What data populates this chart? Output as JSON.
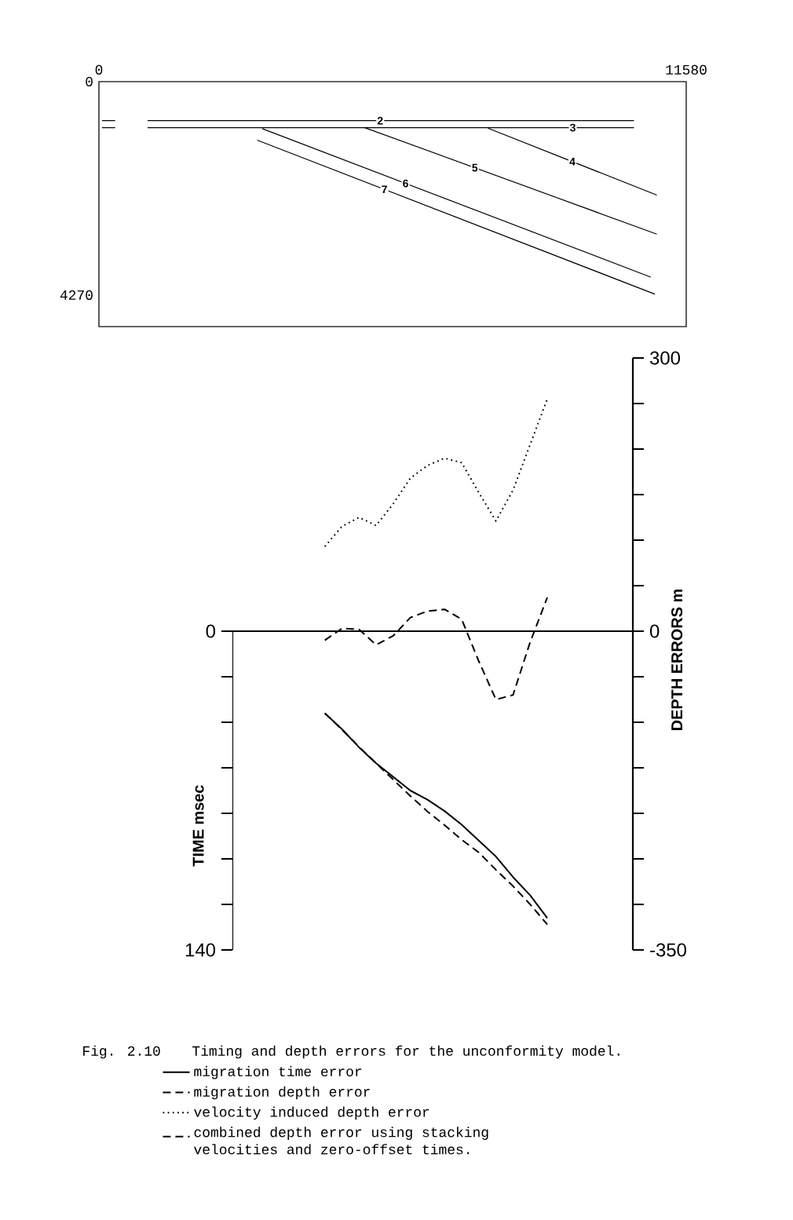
{
  "chart_data": [
    {
      "type": "line",
      "xlim": [
        0,
        11580
      ],
      "ylim": [
        4900,
        0
      ],
      "xticks": [
        0,
        11580
      ],
      "yticks": [
        0,
        4270
      ],
      "series": [
        {
          "name": "2",
          "color": "#000000",
          "x": [
            60,
            320,
            640,
            960,
            10550
          ],
          "values": [
            780,
            780,
            null,
            780,
            780
          ]
        },
        {
          "name": "3",
          "color": "#000000",
          "x": [
            60,
            320,
            640,
            960,
            10550
          ],
          "values": [
            920,
            920,
            null,
            920,
            920
          ]
        },
        {
          "name": "4",
          "color": "#000000",
          "x": [
            7670,
            11000
          ],
          "values": [
            930,
            2270
          ]
        },
        {
          "name": "5",
          "color": "#000000",
          "x": [
            5240,
            11000
          ],
          "values": [
            920,
            3050
          ]
        },
        {
          "name": "6",
          "color": "#000000",
          "x": [
            3220,
            10880
          ],
          "values": [
            940,
            3910
          ]
        },
        {
          "name": "7",
          "color": "#000000",
          "x": [
            3120,
            10960
          ],
          "values": [
            1170,
            4250
          ]
        }
      ]
    },
    {
      "type": "line",
      "categories": [
        null,
        null,
        null,
        null,
        null,
        null,
        null,
        null,
        null,
        null,
        null,
        null,
        null,
        null,
        null,
        null,
        null,
        null,
        null,
        null,
        null,
        null,
        null,
        null
      ],
      "ylabel": "TIME msec",
      "y2label": "DEPTH ERRORS m",
      "ylim": [
        140,
        -120
      ],
      "yticks": [
        0,
        {
          "value": 20,
          "label": null
        },
        {
          "value": 40,
          "label": null
        },
        {
          "value": 60,
          "label": null
        },
        {
          "value": 80,
          "label": null
        },
        {
          "value": 100,
          "label": null
        },
        {
          "value": 120,
          "label": null
        },
        140
      ],
      "y2lim": [
        -350,
        300
      ],
      "y2ticks": [
        -350,
        {
          "value": -300,
          "label": null
        },
        {
          "value": -250,
          "label": null
        },
        {
          "value": -200,
          "label": null
        },
        {
          "value": -150,
          "label": null
        },
        {
          "value": -100,
          "label": null
        },
        {
          "value": -50,
          "label": null
        },
        0,
        {
          "value": 50,
          "label": null
        },
        {
          "value": 100,
          "label": null
        },
        {
          "value": 150,
          "label": null
        },
        {
          "value": 200,
          "label": null
        },
        {
          "value": 250,
          "label": null
        },
        300
      ],
      "tick_labels": "y",
      "legend": "bottom",
      "annotations": [
        "Fig. 2.10",
        "Timing and depth errors for the unconformity model."
      ],
      "series": [
        {
          "name": "migration time error",
          "color": "#000000",
          "line_style": "solid",
          "values": [
            null,
            null,
            null,
            null,
            null,
            36,
            43,
            51,
            58,
            64,
            70,
            74,
            79,
            85,
            92,
            99,
            108,
            116,
            126,
            null,
            null,
            null,
            null,
            null
          ]
        },
        {
          "name": "migration depth error",
          "color": "#000000",
          "line_style": "dashed",
          "axis": "y2",
          "values": [
            null,
            null,
            null,
            null,
            null,
            -90,
            -108,
            -127,
            -145,
            -163,
            -181,
            -198,
            -213,
            -229,
            -243,
            -262,
            -280,
            -300,
            -322,
            null,
            null,
            null,
            null,
            null
          ]
        },
        {
          "name": "velocity induced depth error",
          "color": "#000000",
          "line_style": "dotted",
          "axis": "y2",
          "values": [
            null,
            null,
            null,
            null,
            null,
            93,
            115,
            125,
            116,
            140,
            168,
            182,
            190,
            185,
            152,
            121,
            155,
            205,
            255,
            null,
            null,
            null,
            null,
            null
          ]
        },
        {
          "name": "combined depth error using stacking velocities and zero-offset times.",
          "color": "#000000",
          "line_style": "dashed",
          "axis": "y2",
          "values": [
            null,
            null,
            null,
            null,
            null,
            -10,
            3,
            2,
            -15,
            -5,
            15,
            22,
            24,
            13,
            -33,
            -75,
            -70,
            -12,
            37,
            null,
            null,
            null,
            null,
            null
          ]
        }
      ]
    }
  ]
}
